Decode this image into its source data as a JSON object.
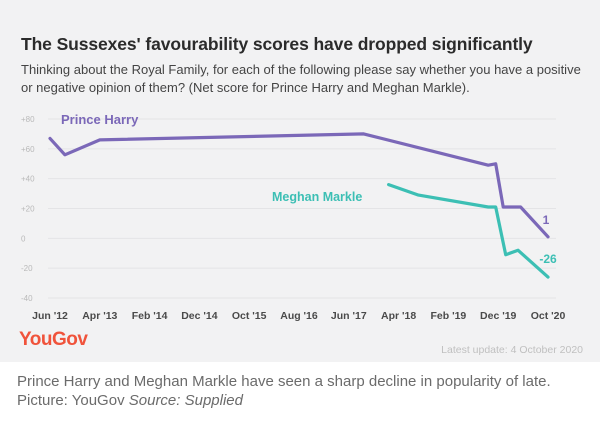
{
  "header": {
    "title": "The Sussexes' favourability scores have dropped significantly",
    "subtitle": "Thinking about the Royal Family, for each of the following please say whether you have a positive or negative opinion of them? (Net score for Prince Harry and Meghan Markle)."
  },
  "footer": {
    "logo_text": "YouGov",
    "update_text": "Latest update: 4 October 2020"
  },
  "caption": {
    "text": "Prince Harry and Meghan Markle have seen a sharp decline in popularity of late. Picture: YouGov",
    "source": "Source: Supplied"
  },
  "colors": {
    "harry": "#7b68b8",
    "meghan": "#3cbfb4",
    "logo": "#f0533b"
  },
  "chart_data": {
    "type": "line",
    "ylim": [
      -40,
      80
    ],
    "y_ticks": [
      -40,
      -20,
      0,
      20,
      40,
      60,
      80
    ],
    "y_tick_labels": [
      "-40",
      "-20",
      "0",
      "+20",
      "+40",
      "+60",
      "+80"
    ],
    "x_tick_labels": [
      "Jun '12",
      "Apr '13",
      "Feb '14",
      "Dec '14",
      "Oct '15",
      "Aug '16",
      "Jun '17",
      "Apr '18",
      "Feb '19",
      "Dec '19",
      "Oct '20"
    ],
    "grid": true,
    "series": [
      {
        "name": "Prince Harry",
        "color": "#7b68b8",
        "end_label": "1",
        "points": [
          [
            0,
            67
          ],
          [
            0.3,
            56
          ],
          [
            1.0,
            66
          ],
          [
            6.3,
            70
          ],
          [
            8.8,
            49
          ],
          [
            8.95,
            50
          ],
          [
            9.1,
            21
          ],
          [
            9.45,
            21
          ],
          [
            10.0,
            1
          ]
        ]
      },
      {
        "name": "Meghan Markle",
        "color": "#3cbfb4",
        "end_label": "-26",
        "points": [
          [
            6.8,
            36
          ],
          [
            7.4,
            29
          ],
          [
            8.8,
            21
          ],
          [
            8.95,
            21
          ],
          [
            9.15,
            -11
          ],
          [
            9.4,
            -8
          ],
          [
            10.0,
            -26
          ]
        ]
      }
    ]
  }
}
